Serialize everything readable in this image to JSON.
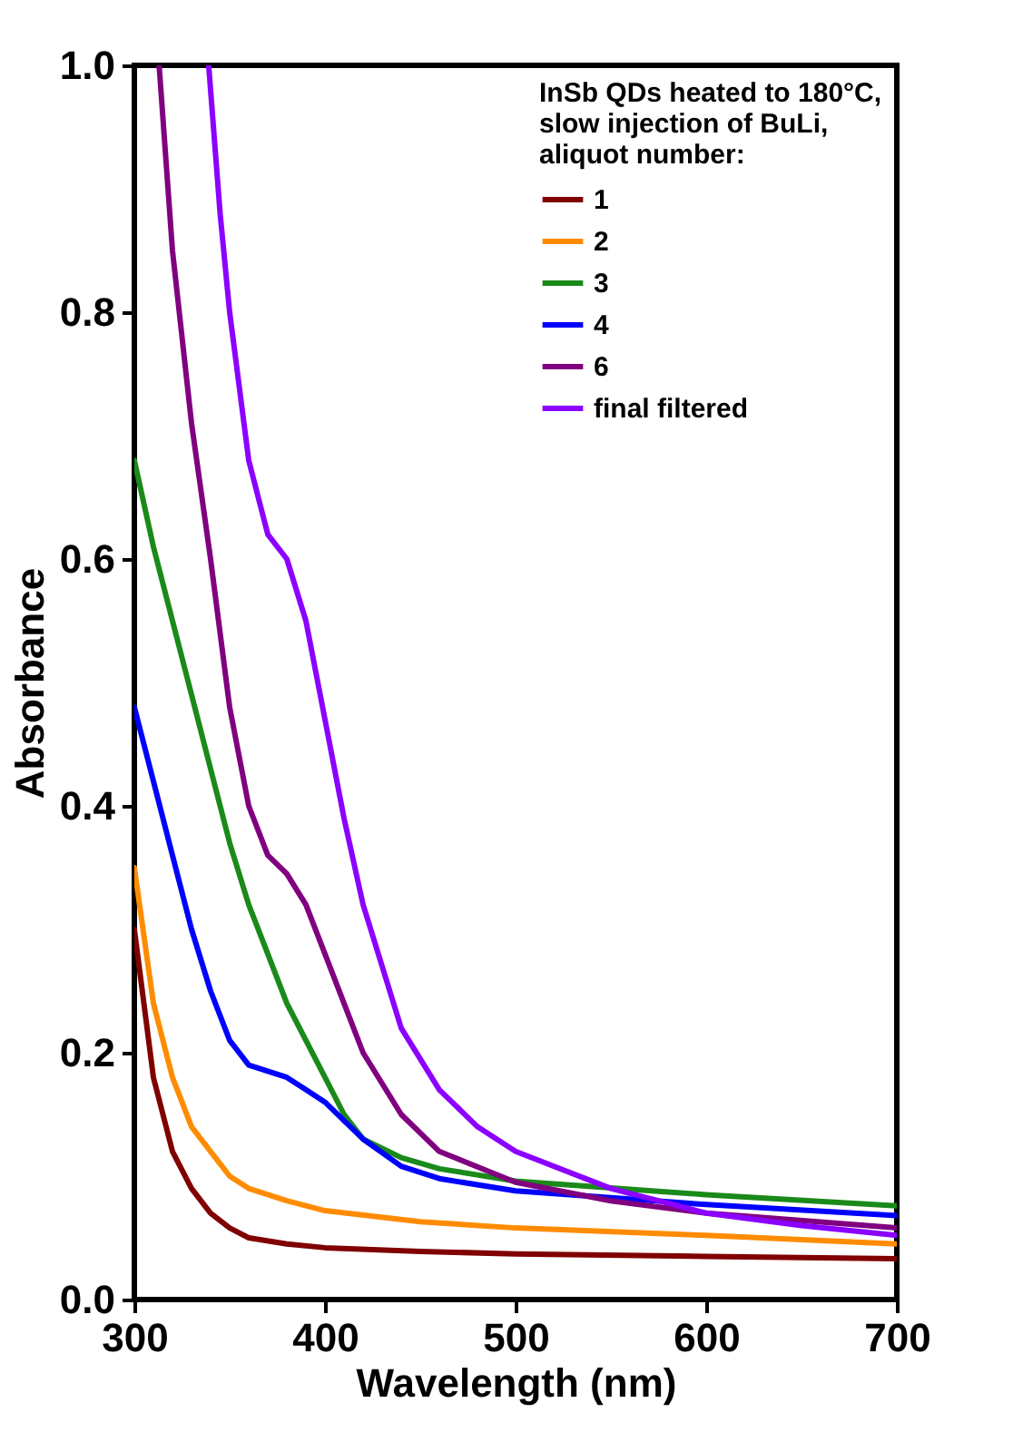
{
  "chart_data": {
    "type": "line",
    "xlabel": "Wavelength (nm)",
    "ylabel": "Absorbance",
    "legend_title": "InSb QDs heated to 180°C, slow injection of BuLi, aliquot number:",
    "legend": "top right",
    "grid": false,
    "marker": "none",
    "line_style": "solid",
    "xlim": [
      300,
      700
    ],
    "ylim": [
      0,
      1.0
    ],
    "xticks": [
      300,
      400,
      500,
      600,
      700
    ],
    "yticks": [
      {
        "value": 0,
        "label": "0.0"
      },
      {
        "value": 0.2,
        "label": "0.2"
      },
      {
        "value": 0.4,
        "label": "0.4"
      },
      {
        "value": 0.6,
        "label": "0.6"
      },
      {
        "value": 0.8,
        "label": "0.8"
      },
      {
        "value": 1.0,
        "label": "1.0"
      }
    ],
    "series": [
      {
        "name": "1",
        "color": "#800000",
        "x": [
          300,
          310,
          320,
          330,
          340,
          350,
          360,
          380,
          400,
          450,
          500,
          600,
          700
        ],
        "values": [
          0.3,
          0.18,
          0.12,
          0.09,
          0.07,
          0.058,
          0.05,
          0.045,
          0.042,
          0.039,
          0.037,
          0.035,
          0.033
        ]
      },
      {
        "name": "2",
        "color": "#ff8c00",
        "x": [
          300,
          310,
          320,
          330,
          340,
          350,
          360,
          380,
          400,
          450,
          500,
          600,
          700
        ],
        "values": [
          0.35,
          0.24,
          0.18,
          0.14,
          0.12,
          0.1,
          0.09,
          0.08,
          0.072,
          0.063,
          0.058,
          0.052,
          0.045
        ]
      },
      {
        "name": "3",
        "color": "#1a8a1a",
        "x": [
          300,
          310,
          320,
          330,
          340,
          350,
          360,
          370,
          380,
          390,
          400,
          410,
          420,
          440,
          460,
          500,
          600,
          700
        ],
        "values": [
          0.68,
          0.61,
          0.55,
          0.49,
          0.43,
          0.37,
          0.32,
          0.28,
          0.24,
          0.21,
          0.18,
          0.15,
          0.13,
          0.115,
          0.106,
          0.096,
          0.085,
          0.076
        ]
      },
      {
        "name": "4",
        "color": "#0000ff",
        "x": [
          300,
          310,
          320,
          330,
          340,
          350,
          360,
          370,
          380,
          390,
          400,
          410,
          420,
          440,
          460,
          500,
          600,
          700
        ],
        "values": [
          0.48,
          0.42,
          0.36,
          0.3,
          0.25,
          0.21,
          0.19,
          0.185,
          0.18,
          0.17,
          0.16,
          0.145,
          0.13,
          0.108,
          0.098,
          0.088,
          0.077,
          0.068
        ]
      },
      {
        "name": "6",
        "color": "#800080",
        "x": [
          313,
          320,
          330,
          340,
          350,
          360,
          370,
          380,
          390,
          400,
          410,
          420,
          440,
          460,
          500,
          550,
          600,
          700
        ],
        "values": [
          1.0,
          0.85,
          0.71,
          0.6,
          0.48,
          0.4,
          0.36,
          0.345,
          0.32,
          0.28,
          0.24,
          0.2,
          0.15,
          0.12,
          0.095,
          0.08,
          0.07,
          0.058
        ]
      },
      {
        "name": "final filtered",
        "color": "#8b00ff",
        "x": [
          339,
          345,
          350,
          360,
          370,
          380,
          390,
          400,
          410,
          420,
          440,
          460,
          480,
          500,
          550,
          600,
          650,
          700
        ],
        "values": [
          1.0,
          0.88,
          0.8,
          0.68,
          0.62,
          0.6,
          0.55,
          0.47,
          0.39,
          0.32,
          0.22,
          0.17,
          0.14,
          0.12,
          0.09,
          0.07,
          0.06,
          0.052
        ]
      }
    ]
  }
}
